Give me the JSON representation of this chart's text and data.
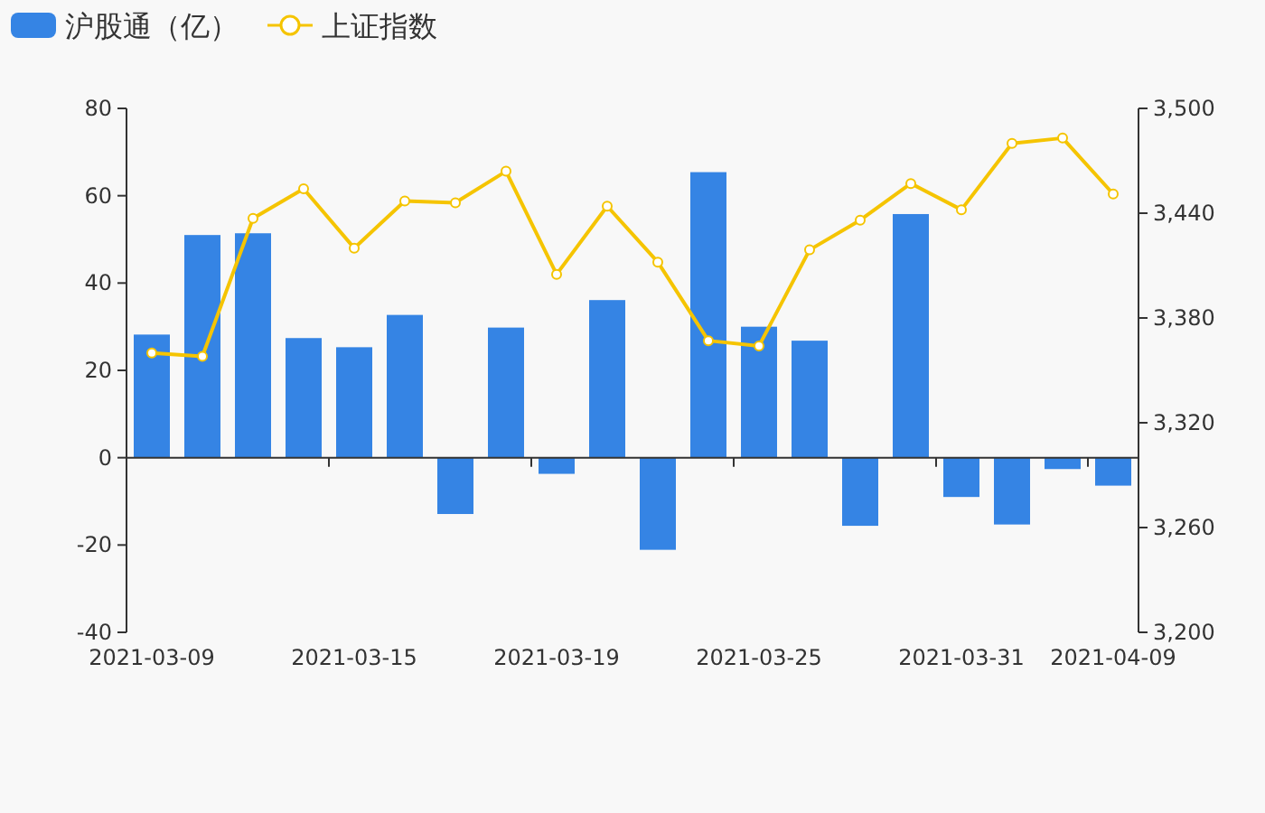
{
  "chart_data": {
    "type": "bar",
    "categories": [
      "2021-03-09",
      null,
      null,
      null,
      "2021-03-15",
      null,
      null,
      null,
      "2021-03-19",
      null,
      null,
      null,
      "2021-03-25",
      null,
      null,
      null,
      "2021-03-31",
      null,
      null,
      "2021-04-09"
    ],
    "series": [
      {
        "name": "沪股通（亿）",
        "color": "#3584e4",
        "values": [
          28.2,
          51.0,
          51.4,
          27.4,
          25.3,
          32.7,
          -12.9,
          29.8,
          -3.7,
          36.1,
          -21.1,
          65.4,
          30.0,
          26.8,
          -15.6,
          55.8,
          -9.0,
          -15.3,
          -2.6,
          -6.4
        ]
      },
      {
        "name": "上证指数",
        "type": "line",
        "axis": "y2",
        "color": "#f5c400",
        "marker": "circle",
        "values": [
          3360,
          3358,
          3437,
          3454,
          3420,
          3447,
          3446,
          3464,
          3405,
          3444,
          3412,
          3367,
          3364,
          3419,
          3436,
          3457,
          3442,
          3480,
          3483,
          3451
        ]
      }
    ],
    "ylim": [
      -40,
      80
    ],
    "yticks": [
      -40,
      -20,
      0,
      20,
      40,
      60,
      80
    ],
    "y2lim": [
      3200,
      3500
    ],
    "y2ticks": [
      {
        "value": 3200,
        "label": "3,200"
      },
      {
        "value": 3260,
        "label": "3,260"
      },
      {
        "value": 3320,
        "label": "3,320"
      },
      {
        "value": 3380,
        "label": "3,380"
      },
      {
        "value": 3440,
        "label": "3,440"
      },
      {
        "value": 3500,
        "label": "3,500"
      }
    ],
    "legend": "top left"
  }
}
